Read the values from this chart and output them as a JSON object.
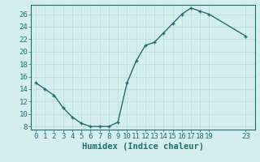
{
  "x": [
    0,
    1,
    2,
    3,
    4,
    5,
    6,
    7,
    8,
    9,
    10,
    11,
    12,
    13,
    14,
    15,
    16,
    17,
    18,
    19,
    23
  ],
  "y": [
    15,
    14,
    13,
    11,
    9.5,
    8.5,
    8,
    8,
    8,
    8.7,
    15,
    18.5,
    21,
    21.5,
    23,
    24.5,
    26,
    27,
    26.5,
    26,
    22.5
  ],
  "xlabel": "Humidex (Indice chaleur)",
  "xlim": [
    -0.5,
    24.0
  ],
  "ylim": [
    7.5,
    27.5
  ],
  "yticks": [
    8,
    10,
    12,
    14,
    16,
    18,
    20,
    22,
    24,
    26
  ],
  "xticks": [
    0,
    1,
    2,
    3,
    4,
    5,
    6,
    7,
    8,
    9,
    10,
    11,
    12,
    13,
    14,
    15,
    16,
    17,
    18,
    19,
    23
  ],
  "line_color": "#1e7070",
  "bg_color": "#d4eeee",
  "grid_color": "#b8dcdc",
  "axis_color": "#1e7070",
  "tick_label_color": "#1e7070",
  "xlabel_color": "#1e7070",
  "xlabel_fontsize": 7.5,
  "tick_fontsize": 6.5
}
